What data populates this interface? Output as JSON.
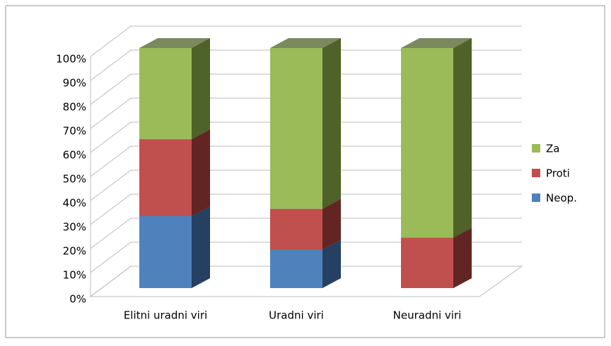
{
  "chart_data": {
    "type": "bar3d_stacked",
    "categories": [
      "Elitni uradni viri",
      "Uradni viri",
      "Neuradni viri"
    ],
    "series": [
      {
        "name": "Neop.",
        "color": "#4f81bd",
        "side": "#254061",
        "values": [
          30,
          16,
          0
        ]
      },
      {
        "name": "Proti",
        "color": "#c0504d",
        "side": "#632523",
        "values": [
          32,
          17,
          21
        ]
      },
      {
        "name": "Za",
        "color": "#9bbb59",
        "side": "#4f6228",
        "values": [
          38,
          67,
          79
        ]
      }
    ],
    "ylim": [
      0,
      100
    ],
    "yticks": [
      {
        "value": 0,
        "label": "0%"
      },
      {
        "value": 10,
        "label": "10%"
      },
      {
        "value": 20,
        "label": "20%"
      },
      {
        "value": 30,
        "label": "30%"
      },
      {
        "value": 40,
        "label": "40%"
      },
      {
        "value": 50,
        "label": "50%"
      },
      {
        "value": 60,
        "label": "60%"
      },
      {
        "value": 70,
        "label": "70%"
      },
      {
        "value": 80,
        "label": "80%"
      },
      {
        "value": 90,
        "label": "90%"
      },
      {
        "value": 100,
        "label": "100%"
      }
    ],
    "grid": true,
    "legend": "right"
  }
}
